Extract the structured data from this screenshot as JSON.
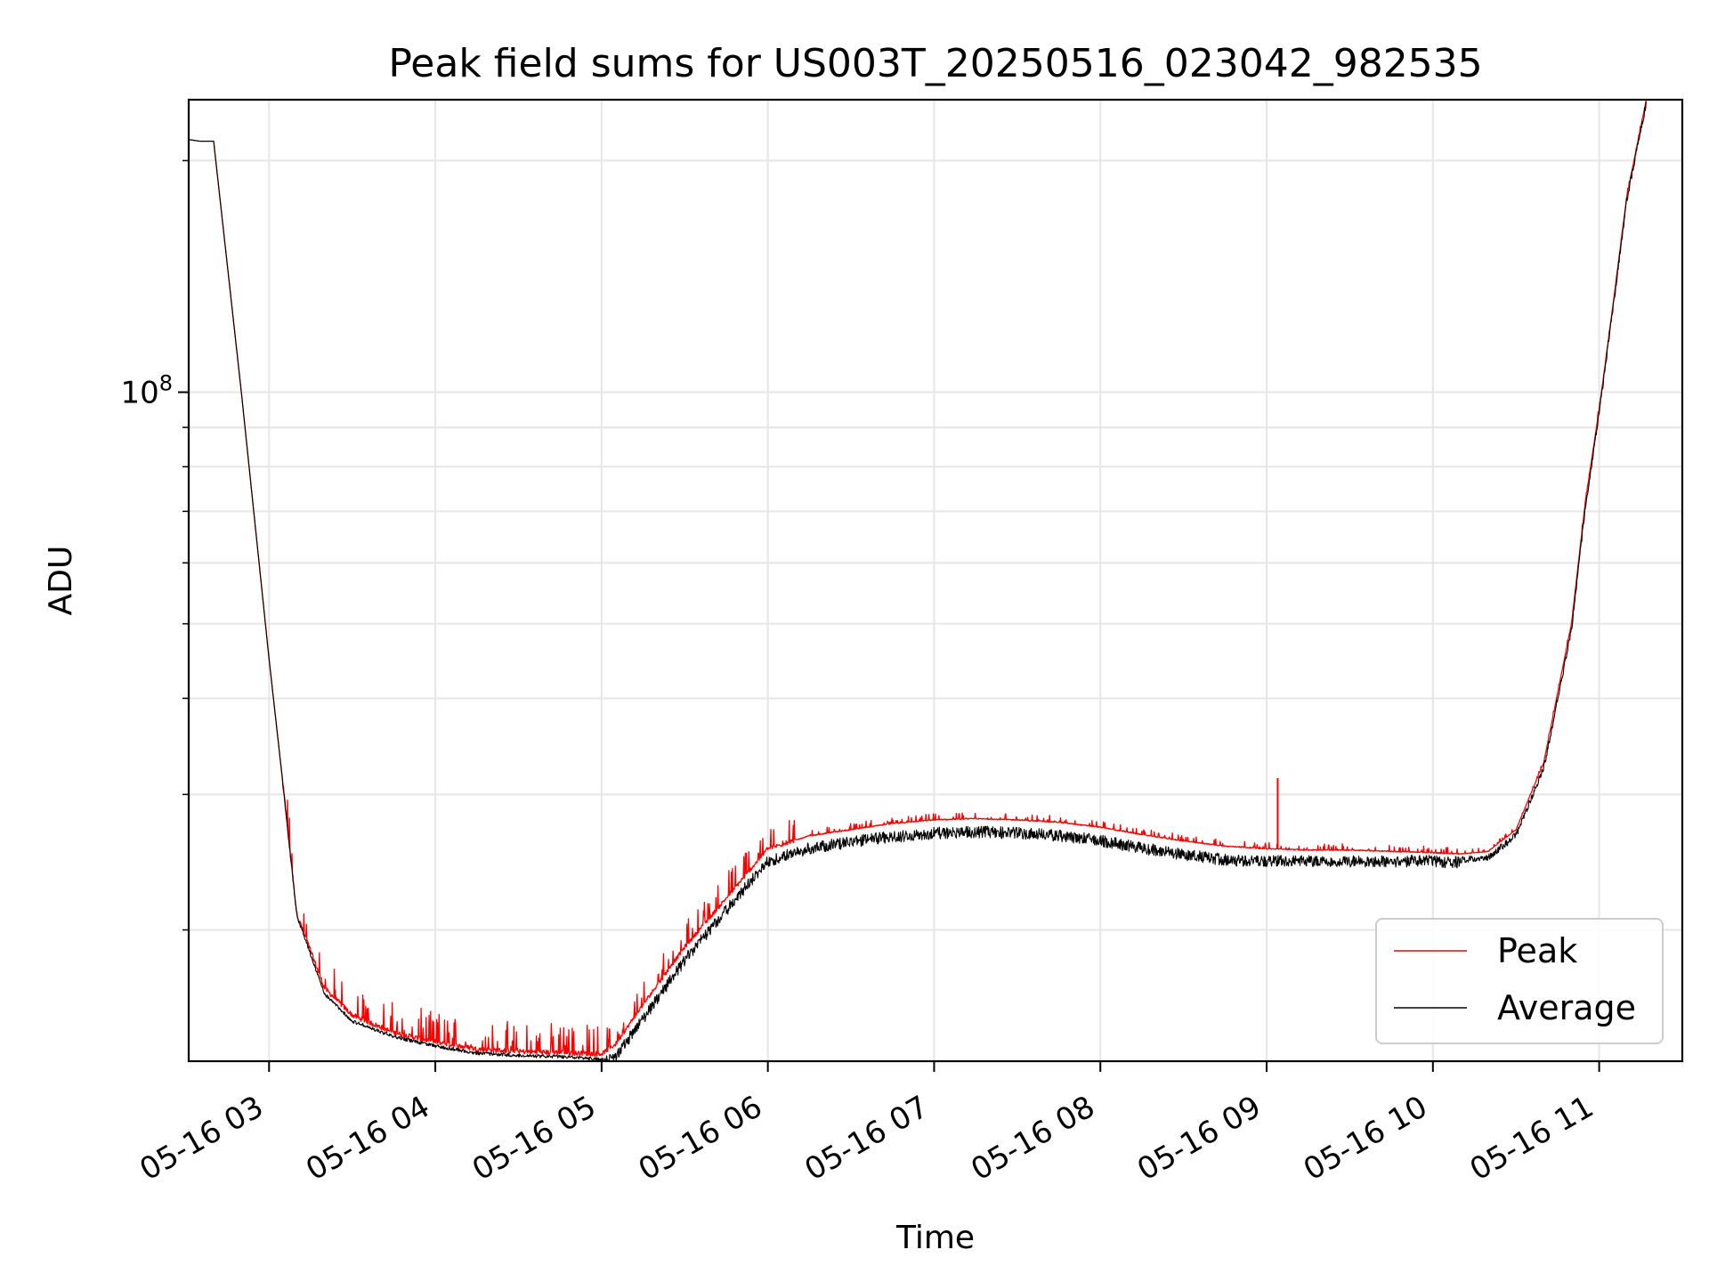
{
  "chart_data": {
    "type": "line",
    "title": "Peak field sums for US003T_20250516_023042_982535",
    "xlabel": "Time",
    "ylabel": "ADU",
    "yscale": "log",
    "grid": true,
    "legend_position": "lower-right",
    "xlim": [
      "2025-05-16 02:31",
      "2025-05-16 11:30"
    ],
    "ylim": [
      13500000,
      240000000
    ],
    "x_ticks": [
      "05-16 03",
      "05-16 04",
      "05-16 05",
      "05-16 06",
      "05-16 07",
      "05-16 08",
      "05-16 09",
      "05-16 10",
      "05-16 11"
    ],
    "y_ticks": [
      {
        "value": 100000000,
        "base": "10",
        "exp": "8"
      }
    ],
    "y_minor_ticks": [
      20000000,
      30000000,
      40000000,
      50000000,
      60000000,
      70000000,
      80000000,
      90000000,
      200000000
    ],
    "x": [
      "2025-05-16 02:31",
      "2025-05-16 02:35",
      "2025-05-16 02:40",
      "2025-05-16 02:50",
      "2025-05-16 03:00",
      "2025-05-16 03:05",
      "2025-05-16 03:10",
      "2025-05-16 03:20",
      "2025-05-16 03:30",
      "2025-05-16 03:45",
      "2025-05-16 04:00",
      "2025-05-16 04:15",
      "2025-05-16 04:30",
      "2025-05-16 04:45",
      "2025-05-16 05:00",
      "2025-05-16 05:05",
      "2025-05-16 05:15",
      "2025-05-16 05:30",
      "2025-05-16 05:45",
      "2025-05-16 06:00",
      "2025-05-16 06:15",
      "2025-05-16 06:30",
      "2025-05-16 06:45",
      "2025-05-16 07:00",
      "2025-05-16 07:15",
      "2025-05-16 07:30",
      "2025-05-16 07:45",
      "2025-05-16 08:00",
      "2025-05-16 08:15",
      "2025-05-16 08:30",
      "2025-05-16 08:45",
      "2025-05-16 09:00",
      "2025-05-16 09:15",
      "2025-05-16 09:30",
      "2025-05-16 09:45",
      "2025-05-16 10:00",
      "2025-05-16 10:10",
      "2025-05-16 10:20",
      "2025-05-16 10:30",
      "2025-05-16 10:40",
      "2025-05-16 10:50",
      "2025-05-16 10:55",
      "2025-05-16 11:00",
      "2025-05-16 11:05",
      "2025-05-16 11:10",
      "2025-05-16 11:17"
    ],
    "series": [
      {
        "name": "Peak",
        "color": "#ff0000",
        "values": [
          213000000,
          212000000,
          212000000,
          100000000,
          45000000,
          31000000,
          21000000,
          16800000,
          15500000,
          14700000,
          14300000,
          14000000,
          13900000,
          13850000,
          13800000,
          14200000,
          16000000,
          19000000,
          22000000,
          25500000,
          26500000,
          27000000,
          27500000,
          27800000,
          27900000,
          27800000,
          27600000,
          27200000,
          26600000,
          26100000,
          25700000,
          25500000,
          25400000,
          25400000,
          25300000,
          25200000,
          25100000,
          25300000,
          27000000,
          33000000,
          50000000,
          72000000,
          95000000,
          130000000,
          180000000,
          240000000
        ]
      },
      {
        "name": "Average",
        "color": "#000000",
        "values": [
          213000000,
          212000000,
          212000000,
          100000000,
          45000000,
          31000000,
          21000000,
          16600000,
          15300000,
          14600000,
          14200000,
          13900000,
          13800000,
          13750000,
          13650000,
          13900000,
          15600000,
          18600000,
          21600000,
          25000000,
          26000000,
          26500000,
          26900000,
          27200000,
          27300000,
          27200000,
          27000000,
          26600000,
          26000000,
          25500000,
          25100000,
          25000000,
          25000000,
          25000000,
          25000000,
          25000000,
          24900000,
          25100000,
          26800000,
          32800000,
          49500000,
          71500000,
          95000000,
          130000000,
          180000000,
          240000000
        ]
      }
    ],
    "annotations": {
      "peak_spike": {
        "x": "2025-05-16 09:04",
        "value": 31500000
      }
    }
  }
}
